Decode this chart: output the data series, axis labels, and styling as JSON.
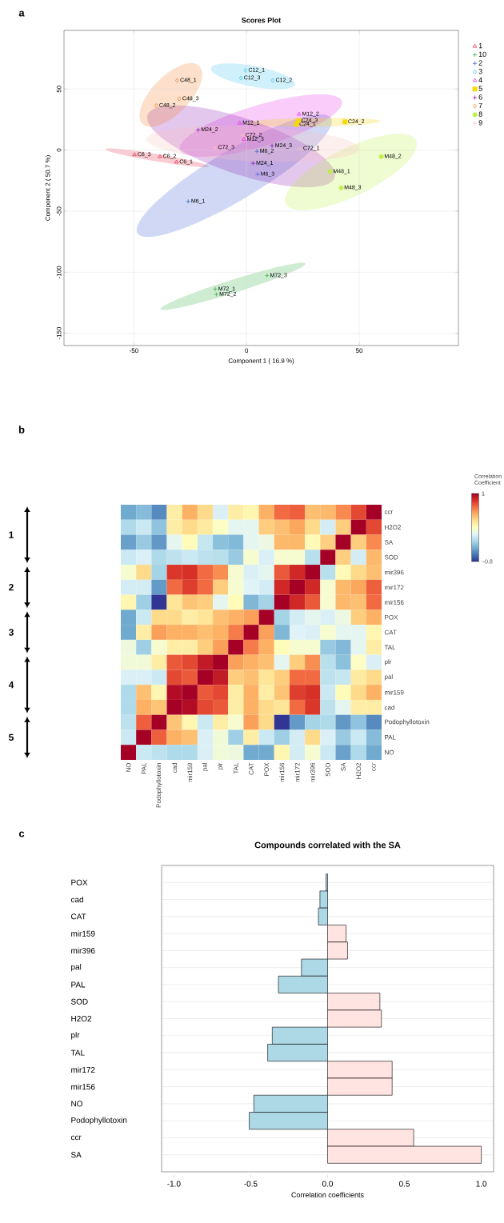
{
  "chart_data": [
    {
      "type": "scatter",
      "title": "Scores Plot",
      "xlabel": "Component 1 ( 16.9 %)",
      "ylabel": "Component 2 ( 50.7 %)",
      "xlim": [
        -81,
        94
      ],
      "ylim": [
        -160,
        98
      ],
      "xticks": [
        -50,
        0,
        50
      ],
      "yticks": [
        -150,
        -100,
        -50,
        0,
        50
      ],
      "grid": true,
      "legend": "right",
      "series": [
        {
          "name": "1",
          "color": "#e8304a",
          "marker": "triangle",
          "x": [
            -49.7,
            -38.4,
            -31.1
          ],
          "values": [
            -3.8,
            -5.3,
            -9.8
          ]
        },
        {
          "name": "10",
          "color": "#3cb44b",
          "marker": "cross",
          "x": [
            -13.9,
            -13.4,
            9.1
          ],
          "values": [
            -113.8,
            -118.1,
            -102.8
          ]
        },
        {
          "name": "2",
          "color": "#4363d8",
          "marker": "cross",
          "x": [
            4.6,
            4.9,
            -25.9
          ],
          "values": [
            -1.0,
            -19.8,
            -42.0
          ]
        },
        {
          "name": "3",
          "color": "#42c8f0",
          "marker": "diamond",
          "x": [
            -0.5,
            -2.5,
            11.6
          ],
          "values": [
            65.3,
            59.0,
            57.0
          ]
        },
        {
          "name": "4",
          "color": "#e632e6",
          "marker": "triangle",
          "x": [
            23.3,
            -3.1,
            -1.2
          ],
          "values": [
            29.4,
            22.1,
            8.8
          ]
        },
        {
          "name": "5",
          "color": "#f5d90a",
          "marker": "square",
          "x": [
            23.0,
            22.1,
            43.7
          ],
          "values": [
            24.1,
            21.1,
            23.1
          ]
        },
        {
          "name": "6",
          "color": "#911eb4",
          "marker": "cross",
          "x": [
            -21.5,
            11.3,
            2.9
          ],
          "values": [
            16.6,
            3.5,
            -10.8
          ]
        },
        {
          "name": "7",
          "color": "#f58231",
          "marker": "diamond",
          "x": [
            -30.8,
            -29.8,
            -40.1
          ],
          "values": [
            57.0,
            42.0,
            36.4
          ]
        },
        {
          "name": "8",
          "color": "#bfef45",
          "marker": "circle",
          "x": [
            59.8,
            37.1,
            42.0
          ],
          "values": [
            -5.3,
            -17.6,
            -30.9
          ]
        },
        {
          "name": "9",
          "color": "#fabebe",
          "marker": "cross",
          "x": [
            -1.8,
            -14.0,
            23.8
          ],
          "values": [
            12.1,
            2.0,
            1.3
          ]
        }
      ],
      "annotations": [
        "a",
        {
          "text": "C6_3",
          "x": -49.7,
          "y": -3.8
        },
        {
          "text": "C6_2",
          "x": -38.4,
          "y": -5.3
        },
        {
          "text": "C6_1",
          "x": -31.1,
          "y": -9.8
        },
        {
          "text": "M72_1",
          "x": -13.9,
          "y": -113.8
        },
        {
          "text": "M72_2",
          "x": -13.4,
          "y": -118.1
        },
        {
          "text": "M72_3",
          "x": 9.1,
          "y": -102.8
        },
        {
          "text": "M6_2",
          "x": 4.6,
          "y": -1.0
        },
        {
          "text": "M6_3",
          "x": 4.9,
          "y": -19.8
        },
        {
          "text": "M6_1",
          "x": -25.9,
          "y": -42.0
        },
        {
          "text": "C12_1",
          "x": -0.5,
          "y": 65.3
        },
        {
          "text": "C12_3",
          "x": -2.5,
          "y": 59.0
        },
        {
          "text": "C12_2",
          "x": 11.6,
          "y": 57.0
        },
        {
          "text": "M12_2",
          "x": 23.3,
          "y": 29.4
        },
        {
          "text": "M12_1",
          "x": -3.1,
          "y": 22.1
        },
        {
          "text": "M12_3",
          "x": -1.2,
          "y": 8.8
        },
        {
          "text": "C24_3",
          "x": 23.0,
          "y": 24.1
        },
        {
          "text": "C24_1",
          "x": 22.1,
          "y": 21.1
        },
        {
          "text": "C24_2",
          "x": 43.7,
          "y": 23.1
        },
        {
          "text": "M24_2",
          "x": -21.5,
          "y": 16.6
        },
        {
          "text": "M24_3",
          "x": 11.3,
          "y": 3.5
        },
        {
          "text": "M24_1",
          "x": 2.9,
          "y": -10.8
        },
        {
          "text": "C48_1",
          "x": -30.8,
          "y": 57.0
        },
        {
          "text": "C48_3",
          "x": -29.8,
          "y": 42.0
        },
        {
          "text": "C48_2",
          "x": -40.1,
          "y": 36.4
        },
        {
          "text": "M48_2",
          "x": 59.8,
          "y": -5.3
        },
        {
          "text": "M48_1",
          "x": 37.1,
          "y": -17.6
        },
        {
          "text": "M48_3",
          "x": 42.0,
          "y": -30.9
        },
        {
          "text": "C72_2",
          "x": -1.8,
          "y": 12.1
        },
        {
          "text": "C72_3",
          "x": -14.0,
          "y": 2.0
        },
        {
          "text": "C72_1",
          "x": 23.8,
          "y": 1.3
        }
      ]
    },
    {
      "type": "heatmap",
      "clabel": "Correlation Coefficient",
      "clim": [
        -0.8,
        1
      ],
      "cticks": [
        {
          "value": -0.8,
          "label": "−0.8"
        },
        1
      ],
      "categories": [
        "NO",
        "PAL",
        "Podophyllotoxin",
        "cad",
        "mir159",
        "pal",
        "plr",
        "TAL",
        "CAT",
        "POX",
        "mir156",
        "mir172",
        "mir396",
        "SOD",
        "SA",
        "H2O2",
        "ccr"
      ],
      "y_categories": [
        "ccr",
        "H2O2",
        "SA",
        "SOD",
        "mir396",
        "mir172",
        "mir156",
        "POX",
        "CAT",
        "TAL",
        "plr",
        "pal",
        "mir159",
        "cad",
        "Podophyllotoxin",
        "PAL",
        "NO"
      ],
      "cells": [
        [
          -0.45,
          -0.38,
          -0.55,
          0.2,
          0.45,
          0.3,
          -0.1,
          0.2,
          0.15,
          0.45,
          0.65,
          0.68,
          0.4,
          0.42,
          0.56,
          0.75,
          1
        ],
        [
          -0.25,
          -0.15,
          -0.35,
          0.2,
          0.3,
          0.22,
          0.08,
          -0.05,
          -0.05,
          0.35,
          0.4,
          0.48,
          0.3,
          -0.12,
          0.35,
          1,
          0.75
        ],
        [
          -0.48,
          -0.32,
          -0.51,
          -0.05,
          0.12,
          -0.17,
          -0.36,
          -0.39,
          -0.05,
          -0.01,
          0.42,
          0.42,
          0.13,
          0.34,
          1,
          0.35,
          0.56
        ],
        [
          -0.15,
          -0.1,
          -0.25,
          -0.2,
          -0.15,
          -0.2,
          -0.22,
          -0.32,
          0.05,
          -0.1,
          0.05,
          0.05,
          -0.22,
          1,
          0.34,
          -0.12,
          0.42
        ],
        [
          0.05,
          0.3,
          -0.28,
          0.8,
          0.82,
          0.65,
          0.55,
          0.05,
          -0.1,
          -0.05,
          0.7,
          0.85,
          1,
          -0.22,
          0.13,
          0.3,
          0.4
        ],
        [
          -0.12,
          -0.12,
          -0.5,
          0.65,
          0.78,
          0.65,
          0.35,
          0.05,
          -0.08,
          -0.12,
          0.85,
          1,
          0.85,
          0.05,
          0.42,
          0.48,
          0.68
        ],
        [
          0.15,
          -0.3,
          -0.8,
          0.25,
          0.38,
          0.35,
          -0.05,
          0.12,
          -0.4,
          -0.28,
          1,
          0.85,
          0.7,
          0.05,
          0.42,
          0.4,
          0.65
        ],
        [
          -0.45,
          -0.15,
          0.3,
          0.3,
          0.2,
          0.25,
          0.4,
          0.45,
          0.5,
          1,
          -0.28,
          -0.12,
          -0.05,
          -0.1,
          -0.01,
          0.35,
          0.45
        ],
        [
          -0.45,
          0.2,
          0.5,
          0.45,
          0.45,
          0.4,
          0.45,
          0.6,
          1,
          0.5,
          -0.4,
          -0.08,
          -0.1,
          0.05,
          -0.05,
          -0.05,
          0.15
        ],
        [
          0.0,
          -0.3,
          0.05,
          0.2,
          0.2,
          0.35,
          0.5,
          1,
          0.6,
          0.45,
          0.12,
          0.05,
          0.05,
          -0.32,
          -0.39,
          -0.05,
          0.2
        ],
        [
          0.02,
          0.02,
          0.2,
          0.7,
          0.75,
          0.9,
          1,
          0.5,
          0.45,
          0.4,
          -0.05,
          0.35,
          0.55,
          -0.22,
          -0.36,
          0.08,
          -0.1
        ],
        [
          -0.1,
          -0.1,
          -0.15,
          0.75,
          0.7,
          1,
          0.9,
          0.35,
          0.4,
          0.25,
          0.35,
          0.65,
          0.65,
          -0.2,
          -0.17,
          0.22,
          0.3
        ],
        [
          -0.25,
          0.4,
          0.15,
          0.95,
          1,
          0.7,
          0.75,
          0.2,
          0.45,
          0.2,
          0.38,
          0.78,
          0.82,
          -0.15,
          0.12,
          0.3,
          0.45
        ],
        [
          -0.25,
          0.45,
          0.38,
          1,
          0.95,
          0.75,
          0.7,
          0.2,
          0.45,
          0.3,
          0.25,
          0.65,
          0.8,
          -0.2,
          -0.05,
          0.2,
          0.2
        ],
        [
          -0.2,
          0.68,
          1,
          0.38,
          0.15,
          -0.15,
          0.2,
          0.05,
          0.5,
          0.3,
          -0.8,
          -0.5,
          -0.28,
          -0.25,
          -0.51,
          -0.35,
          -0.55
        ],
        [
          -0.15,
          1,
          0.68,
          0.45,
          0.4,
          -0.1,
          0.02,
          -0.3,
          0.2,
          -0.15,
          -0.3,
          -0.12,
          0.3,
          -0.1,
          -0.32,
          -0.15,
          -0.38
        ],
        [
          1,
          -0.15,
          -0.2,
          -0.25,
          -0.25,
          -0.1,
          0.02,
          0.0,
          -0.45,
          -0.45,
          0.15,
          -0.12,
          0.05,
          -0.15,
          -0.48,
          -0.25,
          -0.45
        ]
      ],
      "annotations": [
        "b",
        "1",
        "2",
        "3",
        "4",
        "5"
      ]
    },
    {
      "type": "bar",
      "orientation": "horizontal",
      "title": "Compounds correlated with the SA",
      "xlabel": "Correlation coefficients",
      "categories": [
        "POX",
        "cad",
        "CAT",
        "mir159",
        "mir396",
        "pal",
        "PAL",
        "SOD",
        "H2O2",
        "plr",
        "TAL",
        "mir172",
        "mir156",
        "NO",
        "Podophyllotoxin",
        "ccr",
        "SA"
      ],
      "values": [
        -0.01,
        -0.05,
        -0.06,
        0.12,
        0.13,
        -0.17,
        -0.32,
        0.34,
        0.35,
        -0.36,
        -0.39,
        0.42,
        0.42,
        -0.48,
        -0.51,
        0.56,
        1.0
      ],
      "colors": [
        "#add8e6",
        "#add8e6",
        "#add8e6",
        "#ffe4e1",
        "#ffe4e1",
        "#add8e6",
        "#add8e6",
        "#ffe4e1",
        "#ffe4e1",
        "#add8e6",
        "#add8e6",
        "#ffe4e1",
        "#ffe4e1",
        "#add8e6",
        "#add8e6",
        "#ffe4e1",
        "#ffe4e1"
      ],
      "xlim": [
        -1.08,
        1.08
      ],
      "xticks": [
        {
          "value": -1,
          "label": "-1.0"
        },
        {
          "value": -0.5,
          "label": "-0.5"
        },
        {
          "value": 0,
          "label": "0.0"
        },
        {
          "value": 0.5,
          "label": "0.5"
        },
        {
          "value": 1,
          "label": "1.0"
        }
      ],
      "grid": "y",
      "annotations": [
        "c"
      ]
    }
  ]
}
